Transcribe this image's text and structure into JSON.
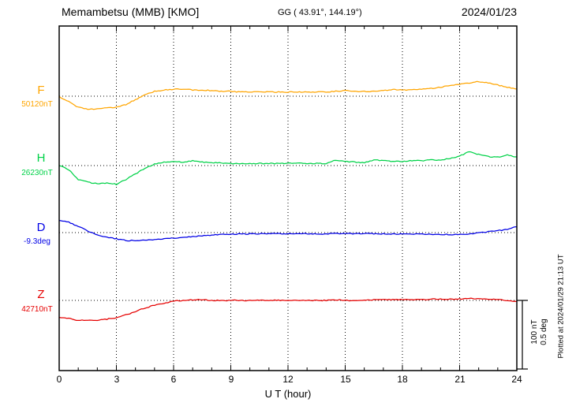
{
  "header": {
    "station_title": "Memambetsu (MMB)  [KMO]",
    "gg_coords": "GG ( 43.91°, 144.19°)",
    "date": "2024/01/23"
  },
  "x_axis": {
    "label": "U T (hour)",
    "tick_labels": [
      "0",
      "3",
      "6",
      "9",
      "12",
      "15",
      "18",
      "21",
      "24"
    ]
  },
  "scale_bar": {
    "nt_label": "100 nT",
    "deg_label": "0.5 deg"
  },
  "footer_note": "Plotted at 2024/01/29 21:13 UT",
  "chart_data": {
    "type": "line",
    "title": "Memambetsu (MMB) [KMO] magnetogram",
    "date": "2024/01/23",
    "xlabel": "U T (hour)",
    "xlim": [
      0,
      24
    ],
    "x_ticks": [
      0,
      3,
      6,
      9,
      12,
      15,
      18,
      21,
      24
    ],
    "x_step_hours": 0.5,
    "grid": "dotted-vertical-3h",
    "legend_position": "left-of-axis",
    "scale_per_division": {
      "nT": 100,
      "deg": 0.5
    },
    "series": [
      {
        "name": "F",
        "unit": "nT",
        "baseline_value_label": "50120nT",
        "color": "#ffa500",
        "offsets": [
          -1,
          -8,
          -16,
          -19,
          -18,
          -17,
          -16,
          -12,
          -5,
          2,
          7,
          9,
          10,
          10,
          9,
          9,
          8,
          7,
          7,
          6,
          6,
          6,
          6,
          6,
          6,
          6,
          6,
          6,
          6,
          7,
          8,
          7,
          7,
          7,
          8,
          10,
          9,
          9,
          10,
          11,
          13,
          15,
          17,
          19,
          21,
          19,
          16,
          13,
          10
        ]
      },
      {
        "name": "H",
        "unit": "nT",
        "baseline_value_label": "26230nT",
        "color": "#00d248",
        "offsets": [
          0,
          -6,
          -20,
          -24,
          -26,
          -25,
          -27,
          -20,
          -12,
          -4,
          2,
          5,
          6,
          5,
          7,
          5,
          4,
          4,
          3,
          3,
          3,
          3,
          3,
          3,
          3,
          4,
          3,
          3,
          3,
          8,
          6,
          5,
          4,
          8,
          7,
          6,
          6,
          7,
          7,
          8,
          8,
          10,
          14,
          20,
          16,
          13,
          12,
          15,
          12
        ]
      },
      {
        "name": "D",
        "unit": "deg",
        "baseline_value_label": "-9.3deg",
        "color": "#0000e6",
        "offsets": [
          0.091,
          0.074,
          0.045,
          0.011,
          -0.017,
          -0.034,
          -0.045,
          -0.057,
          -0.057,
          -0.054,
          -0.051,
          -0.045,
          -0.04,
          -0.034,
          -0.028,
          -0.023,
          -0.017,
          -0.014,
          -0.011,
          -0.01,
          -0.009,
          -0.008,
          -0.008,
          -0.008,
          -0.008,
          -0.008,
          -0.008,
          -0.009,
          -0.009,
          -0.008,
          -0.008,
          -0.008,
          -0.008,
          -0.008,
          -0.009,
          -0.01,
          -0.01,
          -0.011,
          -0.011,
          -0.012,
          -0.013,
          -0.014,
          -0.014,
          -0.01,
          -0.003,
          0.006,
          0.014,
          0.023,
          0.045
        ]
      },
      {
        "name": "Z",
        "unit": "nT",
        "baseline_value_label": "42710nT",
        "color": "#e60000",
        "offsets": [
          -25,
          -26,
          -29,
          -28,
          -29,
          -27,
          -25,
          -21,
          -16,
          -11,
          -7,
          -4,
          -1,
          0,
          1,
          1,
          0,
          0,
          0,
          0,
          0,
          0,
          0,
          0,
          0,
          0,
          0,
          0,
          0,
          1,
          0,
          0,
          0,
          1,
          1,
          1,
          1,
          1,
          1,
          2,
          2,
          2,
          2,
          3,
          2,
          2,
          1,
          0,
          -2
        ]
      }
    ]
  }
}
